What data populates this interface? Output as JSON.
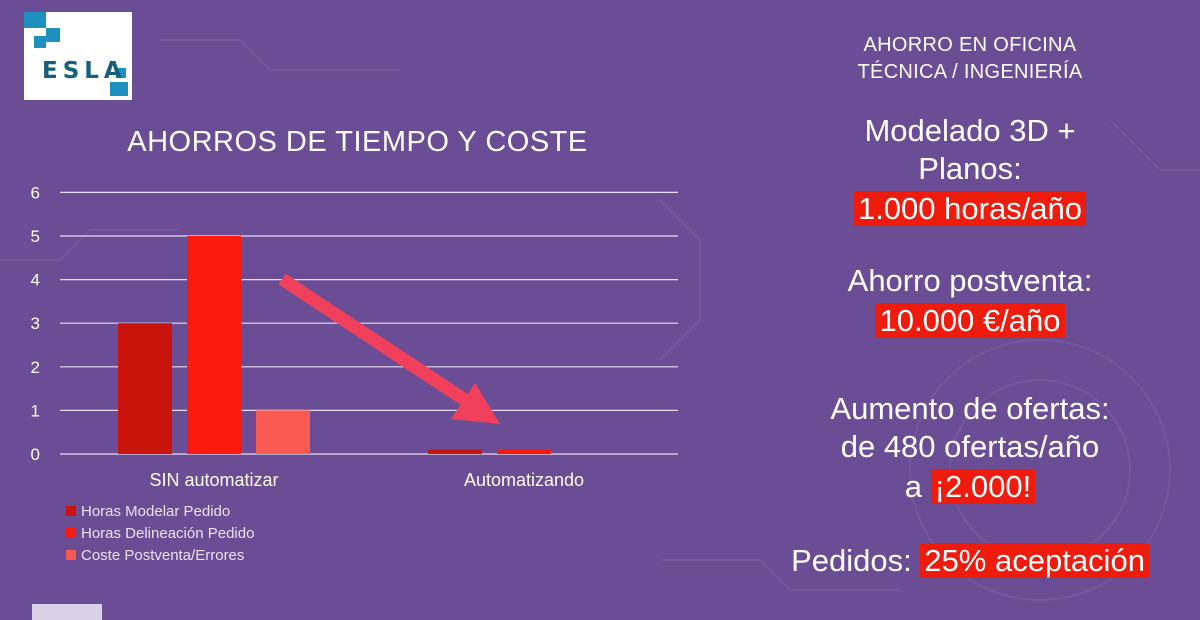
{
  "logo": {
    "text": "ESLA"
  },
  "right_panel": {
    "header_line1": "AHORRO EN OFICINA",
    "header_line2": "TÉCNICA / INGENIERÍA",
    "stat1_line1": "Modelado 3D +",
    "stat1_line2": "Planos:",
    "stat1_highlight": "1.000 horas/año",
    "stat2_label": "Ahorro postventa:",
    "stat2_highlight": "10.000 €/año",
    "stat3_line1": "Aumento de ofertas:",
    "stat3_line2": "de 480 ofertas/año",
    "stat3_prefix": "a",
    "stat3_highlight": "¡2.000!",
    "stat4_label": "Pedidos:",
    "stat4_highlight": "25% aceptación"
  },
  "chart_data": {
    "type": "bar",
    "title": "AHORROS DE TIEMPO Y COSTE",
    "categories": [
      "SIN automatizar",
      "Automatizando"
    ],
    "series": [
      {
        "name": "Horas Modelar Pedido",
        "values": [
          3,
          0.1
        ],
        "color": "#c8140b"
      },
      {
        "name": "Horas Delineación Pedido",
        "values": [
          5,
          0.1
        ],
        "color": "#fb1a0d"
      },
      {
        "name": "Coste Postventa/Errores",
        "values": [
          1,
          0
        ],
        "color": "#fb5a52"
      }
    ],
    "yticks": [
      "0",
      "1",
      "2",
      "3",
      "4",
      "5",
      "6"
    ],
    "ylim": [
      0,
      6
    ],
    "grid": true,
    "legend_position": "bottom-left",
    "arrow_color": "#f0405b"
  }
}
